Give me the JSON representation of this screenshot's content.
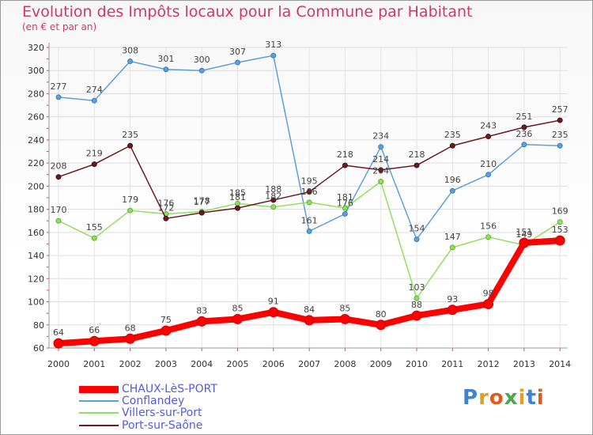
{
  "chart_data": {
    "type": "line",
    "title": "Evolution des Impôts locaux pour la Commune par Habitant",
    "subtitle": "(en € et par an)",
    "x": [
      "2000",
      "2001",
      "2002",
      "2003",
      "2004",
      "2005",
      "2006",
      "2007",
      "2008",
      "2009",
      "2010",
      "2011",
      "2012",
      "2013",
      "2014"
    ],
    "ylim": [
      60,
      320
    ],
    "yticks": [
      60,
      80,
      100,
      120,
      140,
      160,
      180,
      200,
      220,
      240,
      260,
      280,
      300,
      320
    ],
    "grid": true,
    "legend_position": "bottom-left",
    "series": [
      {
        "name": "CHAUX-LèS-PORT",
        "color": "#ff0000",
        "values": [
          64,
          66,
          68,
          75,
          83,
          85,
          91,
          84,
          85,
          80,
          88,
          93,
          98,
          151,
          153
        ]
      },
      {
        "name": "Conflandey",
        "color": "#5f9fd9",
        "values": [
          277,
          274,
          308,
          301,
          300,
          307,
          313,
          161,
          176,
          234,
          154,
          196,
          210,
          236,
          235
        ]
      },
      {
        "name": "Villers-sur-Port",
        "color": "#8fe060",
        "values": [
          170,
          155,
          179,
          176,
          178,
          185,
          182,
          186,
          181,
          204,
          103,
          147,
          156,
          149,
          169
        ]
      },
      {
        "name": "Port-sur-Saône",
        "color": "#6a1a22",
        "values": [
          208,
          219,
          235,
          172,
          177,
          181,
          188,
          195,
          218,
          214,
          218,
          235,
          243,
          251,
          257
        ]
      }
    ],
    "data_labels": [
      [
        64,
        66,
        68,
        75,
        83,
        85,
        91,
        84,
        85,
        80,
        88,
        93,
        98,
        151,
        153
      ],
      [
        277,
        274,
        308,
        301,
        300,
        307,
        313,
        161,
        176,
        234,
        154,
        196,
        210,
        236,
        235
      ],
      [
        170,
        155,
        179,
        176,
        178,
        185,
        182,
        186,
        181,
        204,
        103,
        147,
        156,
        149,
        169
      ],
      [
        208,
        219,
        235,
        172,
        177,
        181,
        188,
        195,
        218,
        214,
        218,
        235,
        243,
        251,
        257
      ]
    ]
  },
  "logo": {
    "letters": [
      "P",
      "r",
      "o",
      "x",
      "i",
      "t",
      "i"
    ],
    "colors": [
      "#3f83d6",
      "#e0a020",
      "#e05a20",
      "#4aa84a",
      "#e0a020",
      "#3f83d6",
      "#e05a20"
    ]
  }
}
